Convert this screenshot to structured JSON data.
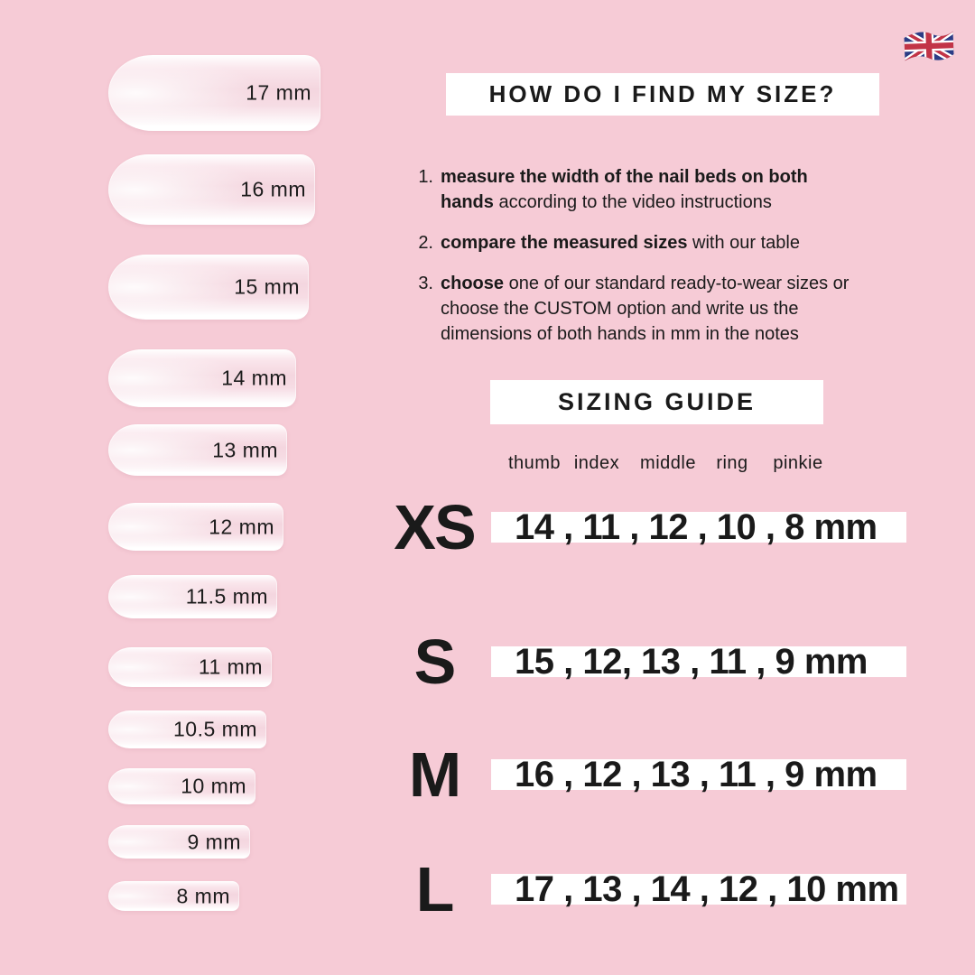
{
  "page": {
    "type": "nail-sizing-infographic",
    "language_flag": "uk-flag-icon",
    "colors": {
      "background": "#f6cbd6",
      "panel": "#ffffff",
      "text": "#1a1a1a",
      "flag_blue": "#2b3c85",
      "flag_red": "#c23447"
    }
  },
  "nail_chart": {
    "sizes": [
      "17 mm",
      "16 mm",
      "15 mm",
      "14 mm",
      "13 mm",
      "12 mm",
      "11.5 mm",
      "11 mm",
      "10.5 mm",
      "10 mm",
      "9 mm",
      "8 mm"
    ]
  },
  "how_to": {
    "title": "HOW DO I FIND MY SIZE?",
    "steps": [
      {
        "number": "1.",
        "bold": "measure the width of the nail beds on both hands",
        "rest": "according to the video instructions"
      },
      {
        "number": "2.",
        "bold": "compare the measured sizes",
        "rest": "with our table"
      },
      {
        "number": "3.",
        "bold": "choose",
        "rest": "one of our standard ready-to-wear sizes or choose the CUSTOM option and write us the dimensions of both hands in mm in the notes"
      }
    ]
  },
  "sizing_guide": {
    "title": "SIZING GUIDE",
    "finger_columns": [
      "thumb",
      "index",
      "middle",
      "ring",
      "pinkie"
    ],
    "rows": [
      {
        "size": "XS",
        "widths_mm": "14 , 11 , 12 , 10 , 8 mm"
      },
      {
        "size": "S",
        "widths_mm": "15 , 12, 13 , 11 , 9 mm"
      },
      {
        "size": "M",
        "widths_mm": "16 , 12 , 13 , 11 , 9 mm"
      },
      {
        "size": "L",
        "widths_mm": "17 , 13 , 14 , 12 , 10 mm"
      }
    ]
  }
}
